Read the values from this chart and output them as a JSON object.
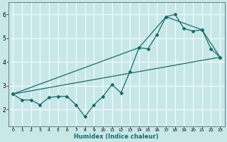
{
  "xlabel": "Humidex (Indice chaleur)",
  "ylabel": "",
  "xlim": [
    -0.5,
    23.5
  ],
  "ylim": [
    1.3,
    6.5
  ],
  "yticks": [
    2,
    3,
    4,
    5,
    6
  ],
  "xticks": [
    0,
    1,
    2,
    3,
    4,
    5,
    6,
    7,
    8,
    9,
    10,
    11,
    12,
    13,
    14,
    15,
    16,
    17,
    18,
    19,
    20,
    21,
    22,
    23
  ],
  "bg_color": "#c8e8e8",
  "grid_color": "#ffffff",
  "line_color": "#1a6b6b",
  "line1_x": [
    0,
    1,
    2,
    3,
    4,
    5,
    6,
    7,
    8,
    9,
    10,
    11,
    12,
    13,
    14,
    15,
    16,
    17,
    18,
    19,
    20,
    21,
    22,
    23
  ],
  "line1_y": [
    2.65,
    2.4,
    2.4,
    2.2,
    2.5,
    2.55,
    2.55,
    2.2,
    1.7,
    2.2,
    2.55,
    3.05,
    2.7,
    3.6,
    4.6,
    4.55,
    5.15,
    5.9,
    6.0,
    5.4,
    5.3,
    5.35,
    4.55,
    4.2
  ],
  "line2_x": [
    0,
    23
  ],
  "line2_y": [
    2.65,
    4.2
  ],
  "line3_x": [
    0,
    14,
    17,
    21,
    23
  ],
  "line3_y": [
    2.65,
    4.6,
    5.9,
    5.35,
    4.2
  ]
}
